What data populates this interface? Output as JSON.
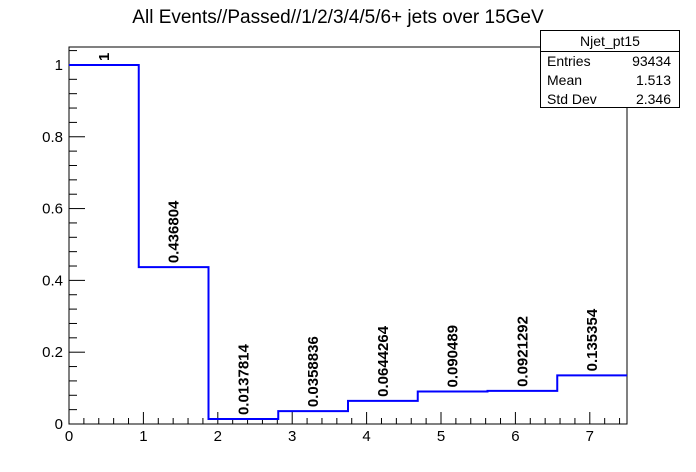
{
  "chart_data": {
    "type": "histogram",
    "title": "All Events//Passed//1/2/3/4/5/6+ jets over 15GeV",
    "xlabel": "",
    "ylabel": "",
    "xlim": [
      0,
      7.5
    ],
    "ylim": [
      0,
      1.05
    ],
    "bin_edges": [
      0,
      0.9375,
      1.875,
      2.8125,
      3.75,
      4.6875,
      5.625,
      6.5625,
      7.5
    ],
    "values": [
      1,
      0.436804,
      0.0137814,
      0.0358836,
      0.0644264,
      0.090489,
      0.0921292,
      0.135354
    ],
    "value_labels": [
      "1",
      "0.436804",
      "0.0137814",
      "0.0358836",
      "0.0644264",
      "0.090489",
      "0.0921292",
      "0.135354"
    ],
    "x_major_ticks": [
      0,
      1,
      2,
      3,
      4,
      5,
      6,
      7
    ],
    "x_tick_labels": [
      "0",
      "1",
      "2",
      "3",
      "4",
      "5",
      "6",
      "7"
    ],
    "y_major_ticks": [
      0,
      0.2,
      0.4,
      0.6,
      0.8,
      1
    ],
    "y_tick_labels": [
      "0",
      "0.2",
      "0.4",
      "0.6",
      "0.8",
      "1"
    ],
    "line_color": "#0000ff"
  },
  "stats": {
    "name": "Njet_pt15",
    "rows": [
      {
        "label": "Entries",
        "value": "93434"
      },
      {
        "label": "Mean",
        "value": "1.513"
      },
      {
        "label": "Std Dev",
        "value": "2.346"
      }
    ]
  }
}
